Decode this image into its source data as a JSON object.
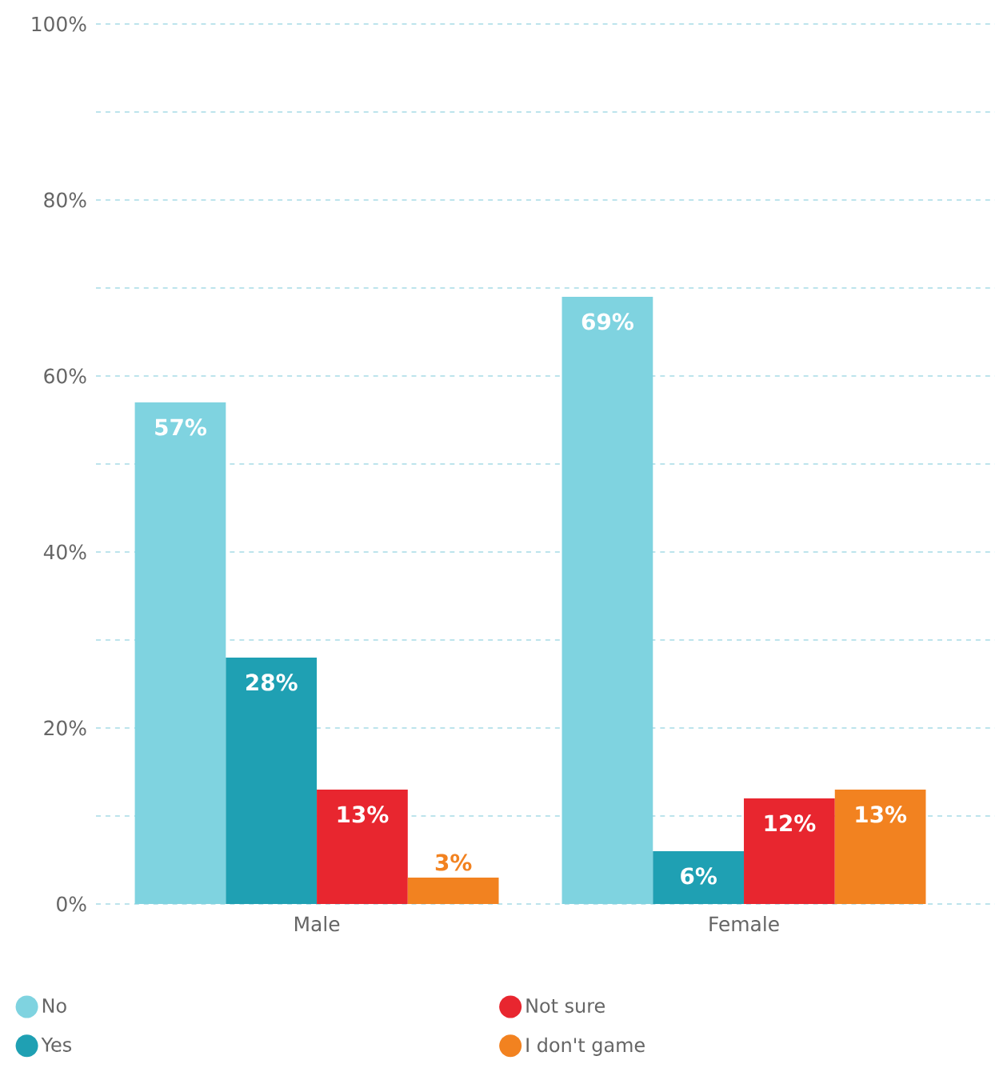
{
  "chart_data": {
    "type": "bar",
    "categories": [
      "Male",
      "Female"
    ],
    "series": [
      {
        "name": "No",
        "color": "#7fd3e0",
        "values": [
          57,
          69
        ],
        "value_labels": [
          "57%",
          "69%"
        ]
      },
      {
        "name": "Yes",
        "color": "#1fa0b3",
        "values": [
          28,
          6
        ],
        "value_labels": [
          "28%",
          "6%"
        ]
      },
      {
        "name": "Not sure",
        "color": "#e8262f",
        "values": [
          13,
          12
        ],
        "value_labels": [
          "13%",
          "12%"
        ]
      },
      {
        "name": "I don't game",
        "color": "#f28220",
        "values": [
          3,
          13
        ],
        "value_labels": [
          "3%",
          "13%"
        ]
      }
    ],
    "ylim": [
      0,
      100
    ],
    "yticks": [
      {
        "value": 0,
        "label": "0%"
      },
      {
        "value": 10,
        "label": null
      },
      {
        "value": 20,
        "label": "20%"
      },
      {
        "value": 30,
        "label": null
      },
      {
        "value": 40,
        "label": "40%"
      },
      {
        "value": 50,
        "label": null
      },
      {
        "value": 60,
        "label": "60%"
      },
      {
        "value": 70,
        "label": null
      },
      {
        "value": 80,
        "label": "80%"
      },
      {
        "value": 90,
        "label": null
      },
      {
        "value": 100,
        "label": "100%"
      }
    ],
    "grid": "y",
    "legend": "bottom"
  }
}
